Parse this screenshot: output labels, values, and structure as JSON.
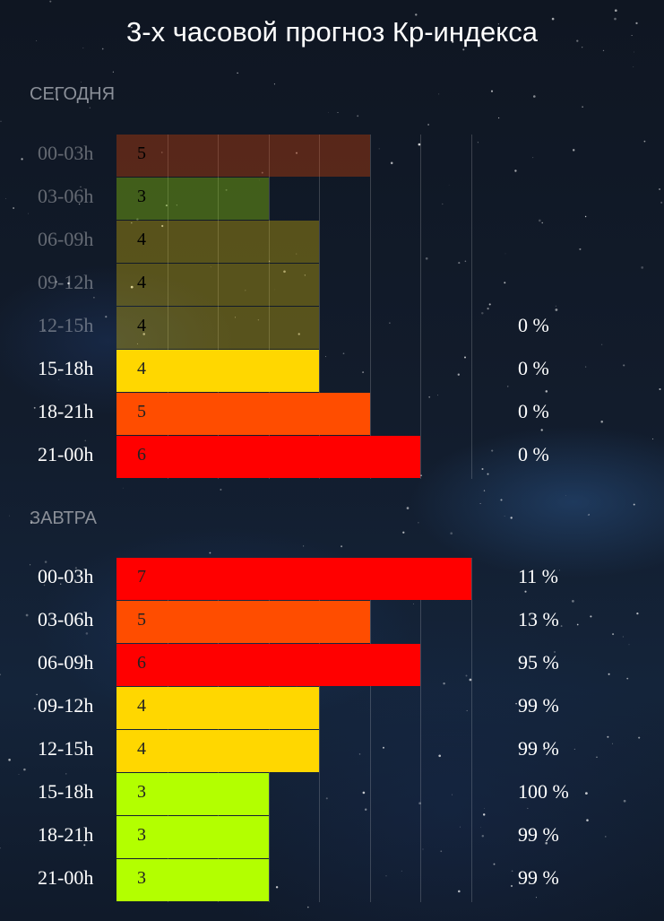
{
  "title": "3-х часовой прогноз Кр-индекса",
  "today": {
    "label": "СЕГОДНЯ",
    "rows": [
      {
        "time": "00-03h",
        "kp": 5,
        "prob": "",
        "color": "#ff4d00",
        "past": true
      },
      {
        "time": "03-06h",
        "kp": 3,
        "prob": "",
        "color": "#b3ff00",
        "past": true
      },
      {
        "time": "06-09h",
        "kp": 4,
        "prob": "",
        "color": "#ffd700",
        "past": true
      },
      {
        "time": "09-12h",
        "kp": 4,
        "prob": "",
        "color": "#ffd700",
        "past": true
      },
      {
        "time": "12-15h",
        "kp": 4,
        "prob": "0 %",
        "color": "#ffd700",
        "past": true
      },
      {
        "time": "15-18h",
        "kp": 4,
        "prob": "0 %",
        "color": "#ffd700",
        "past": false
      },
      {
        "time": "18-21h",
        "kp": 5,
        "prob": "0 %",
        "color": "#ff4d00",
        "past": false
      },
      {
        "time": "21-00h",
        "kp": 6,
        "prob": "0 %",
        "color": "#ff0000",
        "past": false
      }
    ]
  },
  "tomorrow": {
    "label": "ЗАВТРА",
    "rows": [
      {
        "time": "00-03h",
        "kp": 7,
        "prob": "11 %",
        "color": "#ff0000",
        "past": false
      },
      {
        "time": "03-06h",
        "kp": 5,
        "prob": "13 %",
        "color": "#ff4d00",
        "past": false
      },
      {
        "time": "06-09h",
        "kp": 6,
        "prob": "95 %",
        "color": "#ff0000",
        "past": false
      },
      {
        "time": "09-12h",
        "kp": 4,
        "prob": "99 %",
        "color": "#ffd700",
        "past": false
      },
      {
        "time": "12-15h",
        "kp": 4,
        "prob": "99 %",
        "color": "#ffd700",
        "past": false
      },
      {
        "time": "15-18h",
        "kp": 3,
        "prob": "100 %",
        "color": "#b3ff00",
        "past": false
      },
      {
        "time": "18-21h",
        "kp": 3,
        "prob": "99 %",
        "color": "#b3ff00",
        "past": false
      },
      {
        "time": "21-00h",
        "kp": 3,
        "prob": "99 %",
        "color": "#b3ff00",
        "past": false
      }
    ]
  }
}
